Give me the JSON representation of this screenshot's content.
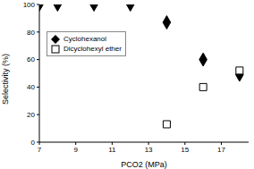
{
  "chart_data": {
    "type": "scatter",
    "x_label": "PCO2 (MPa)",
    "y_label": "Selectivity (%)",
    "xlim": [
      7,
      18.5
    ],
    "xticks": [
      7,
      9,
      11,
      13,
      15,
      17
    ],
    "ylim": [
      0,
      100
    ],
    "yticks": [
      0,
      20,
      40,
      60,
      80,
      100
    ],
    "legend": "top-left",
    "series": [
      {
        "name": "Cyclohexanol",
        "color": "#000000",
        "marker": "diamond",
        "x": [
          7,
          8,
          10,
          12,
          14,
          16,
          18
        ],
        "values": [
          100,
          100,
          100,
          100,
          87,
          60,
          49
        ]
      },
      {
        "name": "Dicyclohexyl ether",
        "color": "#000000",
        "marker": "square_open",
        "x": [
          14,
          16,
          18
        ],
        "values": [
          13,
          40,
          52
        ]
      }
    ]
  }
}
